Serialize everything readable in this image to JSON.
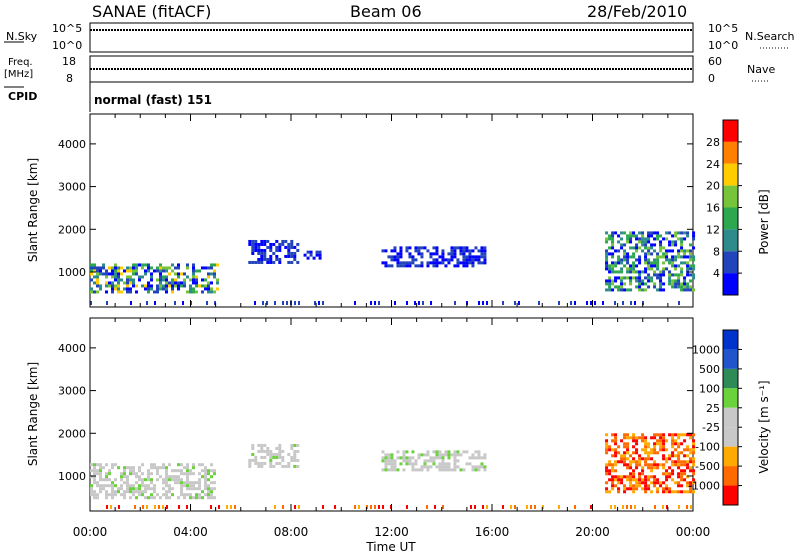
{
  "header": {
    "station": "SANAE (fitACF)",
    "beam": "Beam 06",
    "date": "28/Feb/2010"
  },
  "status_panels": {
    "nsky": {
      "label": "N.Sky",
      "ticks": [
        "10^5",
        "10^0"
      ],
      "right_label": "N.Search",
      "right_ticks": [
        "10^5",
        "10^0"
      ]
    },
    "freq": {
      "label_line1": "Freq.",
      "label_line2": "[MHz]",
      "ticks": [
        "18",
        "8"
      ],
      "right_label": "Nave",
      "right_ticks": [
        "60",
        "0"
      ]
    },
    "cpid": {
      "label": "CPID",
      "value": "normal (fast) 151"
    }
  },
  "colors": {
    "power_scale": [
      "#0000ff",
      "#2244bb",
      "#2e8b8b",
      "#2ea84e",
      "#77c43a",
      "#ffcc00",
      "#ff7f00",
      "#ff0000"
    ],
    "velocity_scale": [
      "#ff0000",
      "#ff6a00",
      "#ffaa00",
      "#c8c8c8",
      "#c8c8c8",
      "#6ad23a",
      "#2e8b57",
      "#2255cc",
      "#0033cc"
    ]
  },
  "chart_data": [
    {
      "type": "heatmap",
      "title": "Power",
      "xlabel": "Time UT",
      "ylabel": "Slant Range [km]",
      "x_ticks": [
        "00:00",
        "04:00",
        "08:00",
        "12:00",
        "16:00",
        "20:00",
        "00:00"
      ],
      "xlim_hours": [
        0,
        24
      ],
      "y_ticks": [
        1000,
        2000,
        3000,
        4000
      ],
      "ylim": [
        180,
        4700
      ],
      "colorbar": {
        "label": "Power [dB]",
        "ticks": [
          4,
          8,
          12,
          16,
          20,
          24,
          28
        ],
        "range": [
          0,
          32
        ]
      },
      "regions": [
        {
          "t": [
            0.0,
            5.1
          ],
          "range": [
            560,
            1200
          ],
          "level": "high"
        },
        {
          "t": [
            6.3,
            8.3
          ],
          "range": [
            1250,
            1750
          ],
          "level": "low"
        },
        {
          "t": [
            8.5,
            9.2
          ],
          "range": [
            1350,
            1500
          ],
          "level": "low"
        },
        {
          "t": [
            11.6,
            15.7
          ],
          "range": [
            1150,
            1600
          ],
          "level": "low"
        },
        {
          "t": [
            20.5,
            24.0
          ],
          "range": [
            600,
            1950
          ],
          "level": "mixed"
        }
      ]
    },
    {
      "type": "heatmap",
      "title": "Velocity",
      "xlabel": "Time UT",
      "ylabel": "Slant Range [km]",
      "x_ticks": [
        "00:00",
        "04:00",
        "08:00",
        "12:00",
        "16:00",
        "20:00",
        "00:00"
      ],
      "xlim_hours": [
        0,
        24
      ],
      "y_ticks": [
        1000,
        2000,
        3000,
        4000
      ],
      "ylim": [
        180,
        4700
      ],
      "colorbar": {
        "label": "Velocity [m s⁻¹]",
        "ticks": [
          1000,
          500,
          100,
          25,
          -25,
          -100,
          -500,
          -1000
        ]
      },
      "regions": [
        {
          "t": [
            0.0,
            5.0
          ],
          "range": [
            500,
            1300
          ],
          "level": "ground"
        },
        {
          "t": [
            6.3,
            8.3
          ],
          "range": [
            1250,
            1750
          ],
          "level": "ground"
        },
        {
          "t": [
            11.6,
            15.7
          ],
          "range": [
            1150,
            1600
          ],
          "level": "ground"
        },
        {
          "t": [
            20.5,
            24.0
          ],
          "range": [
            600,
            2000
          ],
          "level": "negative"
        }
      ]
    }
  ]
}
